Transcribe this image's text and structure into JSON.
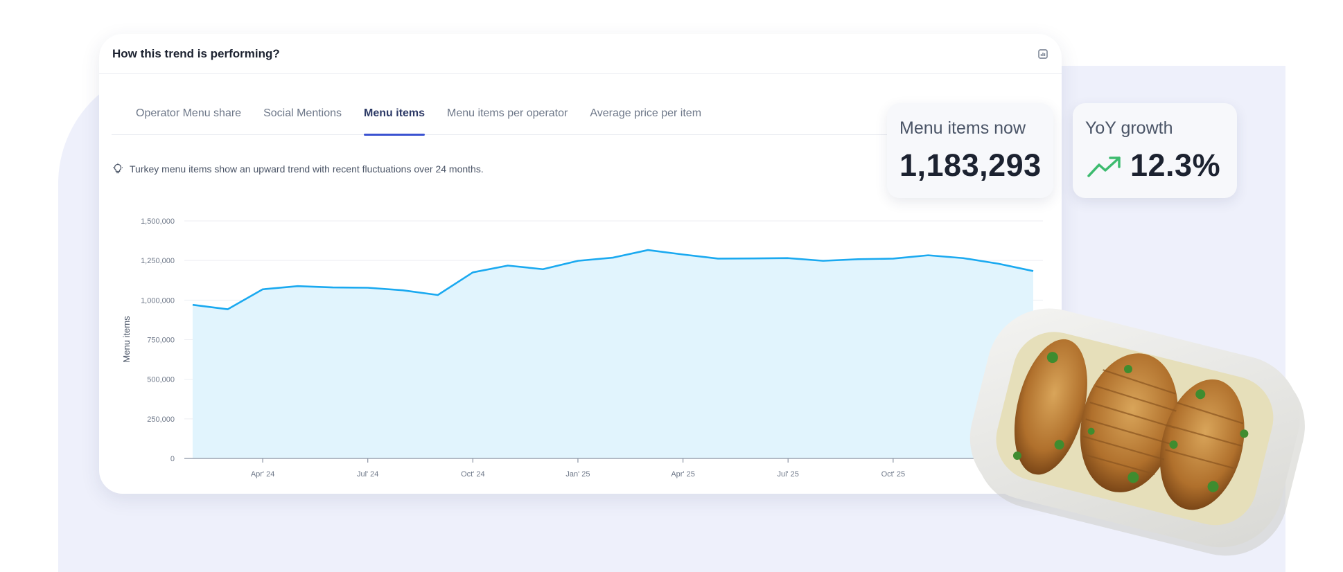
{
  "card": {
    "title": "How this trend is performing?",
    "tabs": [
      {
        "label": "Operator Menu share",
        "active": false
      },
      {
        "label": "Social Mentions",
        "active": false
      },
      {
        "label": "Menu items",
        "active": true
      },
      {
        "label": "Menu items per operator",
        "active": false
      },
      {
        "label": "Average price per item",
        "active": false
      }
    ],
    "insight": "Turkey menu items show an upward trend with recent fluctuations over 24 months."
  },
  "stats": {
    "now": {
      "label": "Menu items now",
      "value": "1,183,293"
    },
    "yoy": {
      "label": "YoY growth",
      "value": "12.3%"
    }
  },
  "colors": {
    "line": "#1aa9f0",
    "area": "#e1f4fd",
    "accent_tab": "#3a52d1",
    "growth_arrow": "#3dbb6f"
  },
  "chart_data": {
    "type": "area",
    "ylabel": "Menu items",
    "xlabel": "",
    "ylim": [
      0,
      1500000
    ],
    "yticks": [
      "0",
      "250,000",
      "500,000",
      "750,000",
      "1,000,000",
      "1,250,000",
      "1,500,000"
    ],
    "x_tick_labels": [
      "Apr' 24",
      "Jul' 24",
      "Oct' 24",
      "Jan' 25",
      "Apr' 25",
      "Jul' 25",
      "Oct' 25"
    ],
    "series": [
      {
        "values": [
          970000,
          942000,
          1068000,
          1088000,
          1080000,
          1078000,
          1062000,
          1032000,
          1175000,
          1218000,
          1195000,
          1248000,
          1268000,
          1316000,
          1288000,
          1262000,
          1263000,
          1265000,
          1248000,
          1258000,
          1262000,
          1283000,
          1265000,
          1230000,
          1183293
        ]
      }
    ],
    "grid": true,
    "legend": "none"
  }
}
